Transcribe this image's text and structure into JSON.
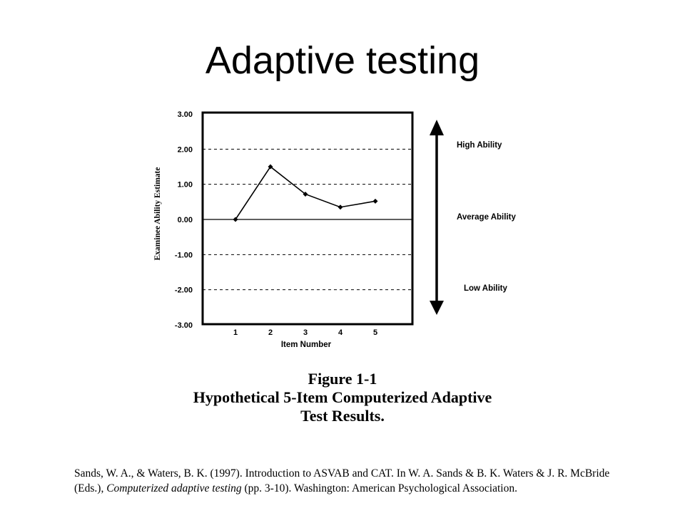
{
  "slide": {
    "title": "Adaptive testing"
  },
  "chart_data": {
    "type": "line",
    "xlabel": "Item Number",
    "ylabel": "Examinee Ability Estimate",
    "x": [
      1,
      2,
      3,
      4,
      5
    ],
    "x_tick_labels": [
      "1",
      "2",
      "3",
      "4",
      "5"
    ],
    "y": [
      0.0,
      1.5,
      0.72,
      0.35,
      0.52
    ],
    "ylim": [
      -3.0,
      3.0
    ],
    "y_tick_labels": [
      "3.00",
      "2.00",
      "1.00",
      "0.00",
      "-1.00",
      "-2.00",
      "-3.00"
    ],
    "y_ticks": [
      3,
      2,
      1,
      0,
      -1,
      -2,
      -3
    ],
    "grid": "dashed horizontal",
    "ability_scale": {
      "top": "High Ability",
      "middle": "Average Ability",
      "bottom": "Low Ability"
    }
  },
  "caption": {
    "figure": "Figure 1-1",
    "line1": "Hypothetical 5-Item Computerized Adaptive",
    "line2": "Test Results."
  },
  "citation": {
    "part1": "Sands, W. A., & Waters, B. K. (1997). Introduction to ASVAB and CAT. In W. A. Sands & B. K. Waters & J. R. McBride (Eds.), ",
    "book": "Computerized adaptive testing",
    "part2": " (pp. 3-10). Washington: American Psychological Association."
  }
}
